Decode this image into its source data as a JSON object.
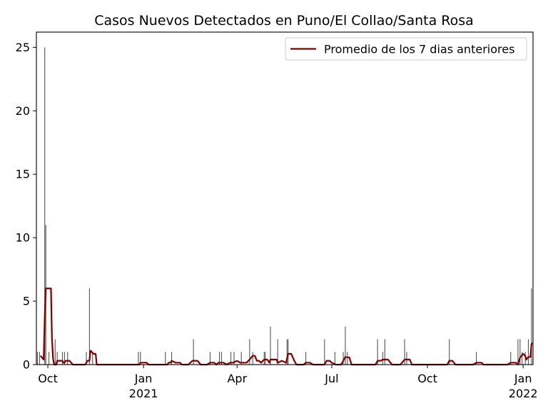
{
  "chart_data": {
    "type": "bar",
    "title": "Casos Nuevos Detectados en Puno/El Collao/Santa Rosa",
    "xlabel": "",
    "ylabel": "",
    "ylim": [
      0,
      26.2
    ],
    "xlim": [
      "2020-09-20",
      "2022-01-09"
    ],
    "grid": false,
    "legend_position": "top-right",
    "colors": {
      "bars": "#555555",
      "line": "#800000"
    },
    "x_ticks": [
      {
        "date": "2020-10-01",
        "lines": [
          "Oct"
        ]
      },
      {
        "date": "2021-01-01",
        "lines": [
          "Jan",
          "2021"
        ]
      },
      {
        "date": "2021-04-01",
        "lines": [
          "Apr"
        ]
      },
      {
        "date": "2021-07-01",
        "lines": [
          "Jul"
        ]
      },
      {
        "date": "2021-10-01",
        "lines": [
          "Oct"
        ]
      },
      {
        "date": "2022-01-01",
        "lines": [
          "Jan",
          "2022"
        ]
      }
    ],
    "y_ticks": [
      0,
      5,
      10,
      15,
      20,
      25
    ],
    "series": [
      {
        "name": "",
        "kind": "bar",
        "points": [
          [
            "2020-09-21",
            1
          ],
          [
            "2020-09-23",
            1
          ],
          [
            "2020-09-28",
            25
          ],
          [
            "2020-09-29",
            11
          ],
          [
            "2020-10-02",
            1
          ],
          [
            "2020-10-08",
            2
          ],
          [
            "2020-10-10",
            1
          ],
          [
            "2020-10-15",
            1
          ],
          [
            "2020-10-17",
            1
          ],
          [
            "2020-10-20",
            1
          ],
          [
            "2020-11-07",
            1
          ],
          [
            "2020-11-10",
            6
          ],
          [
            "2020-11-13",
            1
          ],
          [
            "2020-12-27",
            1
          ],
          [
            "2020-12-29",
            1
          ],
          [
            "2021-01-22",
            1
          ],
          [
            "2021-01-28",
            1
          ],
          [
            "2021-02-18",
            2
          ],
          [
            "2021-03-06",
            1
          ],
          [
            "2021-03-15",
            1
          ],
          [
            "2021-03-17",
            1
          ],
          [
            "2021-03-26",
            1
          ],
          [
            "2021-03-29",
            1
          ],
          [
            "2021-04-05",
            1
          ],
          [
            "2021-04-13",
            2
          ],
          [
            "2021-04-16",
            1
          ],
          [
            "2021-04-27",
            1
          ],
          [
            "2021-04-28",
            1
          ],
          [
            "2021-05-03",
            3
          ],
          [
            "2021-05-10",
            2
          ],
          [
            "2021-05-19",
            2
          ],
          [
            "2021-05-20",
            2
          ],
          [
            "2021-06-06",
            1
          ],
          [
            "2021-06-24",
            2
          ],
          [
            "2021-07-04",
            1
          ],
          [
            "2021-07-12",
            1
          ],
          [
            "2021-07-14",
            3
          ],
          [
            "2021-07-16",
            1
          ],
          [
            "2021-08-14",
            2
          ],
          [
            "2021-08-19",
            1
          ],
          [
            "2021-08-21",
            2
          ],
          [
            "2021-09-09",
            2
          ],
          [
            "2021-09-11",
            1
          ],
          [
            "2021-10-22",
            2
          ],
          [
            "2021-11-17",
            1
          ],
          [
            "2021-12-20",
            1
          ],
          [
            "2021-12-27",
            2
          ],
          [
            "2021-12-29",
            2
          ],
          [
            "2021-12-31",
            1
          ],
          [
            "2022-01-03",
            1
          ],
          [
            "2022-01-06",
            2
          ],
          [
            "2022-01-09",
            6
          ]
        ]
      },
      {
        "name": "Promedio de los 7 dias anteriores",
        "kind": "line",
        "points": [
          [
            "2020-09-24",
            0.7
          ],
          [
            "2020-09-27",
            0.4
          ],
          [
            "2020-09-28",
            3.7
          ],
          [
            "2020-09-29",
            6.0
          ],
          [
            "2020-10-04",
            6.0
          ],
          [
            "2020-10-05",
            2.0
          ],
          [
            "2020-10-06",
            0.5
          ],
          [
            "2020-10-07",
            0.0
          ],
          [
            "2020-10-09",
            0.0
          ],
          [
            "2020-10-10",
            0.3
          ],
          [
            "2020-10-15",
            0.3
          ],
          [
            "2020-10-16",
            0.15
          ],
          [
            "2020-10-17",
            0.15
          ],
          [
            "2020-10-18",
            0.3
          ],
          [
            "2020-10-22",
            0.3
          ],
          [
            "2020-10-25",
            0.0
          ],
          [
            "2020-11-06",
            0.0
          ],
          [
            "2020-11-08",
            0.3
          ],
          [
            "2020-11-10",
            0.3
          ],
          [
            "2020-11-11",
            1.1
          ],
          [
            "2020-11-14",
            0.85
          ],
          [
            "2020-11-16",
            0.85
          ],
          [
            "2020-11-17",
            0.0
          ],
          [
            "2020-12-28",
            0.0
          ],
          [
            "2020-12-29",
            0.15
          ],
          [
            "2021-01-04",
            0.15
          ],
          [
            "2021-01-06",
            0.0
          ],
          [
            "2021-01-24",
            0.0
          ],
          [
            "2021-01-25",
            0.15
          ],
          [
            "2021-01-27",
            0.15
          ],
          [
            "2021-01-28",
            0.3
          ],
          [
            "2021-02-01",
            0.15
          ],
          [
            "2021-02-05",
            0.15
          ],
          [
            "2021-02-07",
            0.0
          ],
          [
            "2021-02-13",
            0.0
          ],
          [
            "2021-02-17",
            0.3
          ],
          [
            "2021-02-22",
            0.3
          ],
          [
            "2021-02-25",
            0.0
          ],
          [
            "2021-03-03",
            0.0
          ],
          [
            "2021-03-06",
            0.15
          ],
          [
            "2021-03-10",
            0.15
          ],
          [
            "2021-03-12",
            0.0
          ],
          [
            "2021-03-14",
            0.15
          ],
          [
            "2021-03-19",
            0.15
          ],
          [
            "2021-03-22",
            0.0
          ],
          [
            "2021-03-25",
            0.15
          ],
          [
            "2021-03-28",
            0.15
          ],
          [
            "2021-04-01",
            0.3
          ],
          [
            "2021-04-04",
            0.15
          ],
          [
            "2021-04-06",
            0.15
          ],
          [
            "2021-04-10",
            0.15
          ],
          [
            "2021-04-13",
            0.4
          ],
          [
            "2021-04-16",
            0.7
          ],
          [
            "2021-04-18",
            0.7
          ],
          [
            "2021-04-20",
            0.3
          ],
          [
            "2021-04-22",
            0.3
          ],
          [
            "2021-04-24",
            0.15
          ],
          [
            "2021-04-27",
            0.4
          ],
          [
            "2021-04-30",
            0.4
          ],
          [
            "2021-05-02",
            0.15
          ],
          [
            "2021-05-03",
            0.4
          ],
          [
            "2021-05-07",
            0.4
          ],
          [
            "2021-05-09",
            0.4
          ],
          [
            "2021-05-10",
            0.15
          ],
          [
            "2021-05-14",
            0.3
          ],
          [
            "2021-05-18",
            0.15
          ],
          [
            "2021-05-20",
            0.85
          ],
          [
            "2021-05-23",
            0.85
          ],
          [
            "2021-05-26",
            0.3
          ],
          [
            "2021-05-28",
            0.0
          ],
          [
            "2021-06-04",
            0.0
          ],
          [
            "2021-06-06",
            0.15
          ],
          [
            "2021-06-10",
            0.15
          ],
          [
            "2021-06-13",
            0.0
          ],
          [
            "2021-06-24",
            0.0
          ],
          [
            "2021-06-26",
            0.3
          ],
          [
            "2021-06-29",
            0.3
          ],
          [
            "2021-07-01",
            0.15
          ],
          [
            "2021-07-05",
            0.0
          ],
          [
            "2021-07-10",
            0.0
          ],
          [
            "2021-07-14",
            0.6
          ],
          [
            "2021-07-18",
            0.55
          ],
          [
            "2021-07-20",
            0.0
          ],
          [
            "2021-08-12",
            0.0
          ],
          [
            "2021-08-14",
            0.3
          ],
          [
            "2021-08-17",
            0.3
          ],
          [
            "2021-08-19",
            0.4
          ],
          [
            "2021-08-24",
            0.4
          ],
          [
            "2021-08-28",
            0.0
          ],
          [
            "2021-09-05",
            0.0
          ],
          [
            "2021-09-09",
            0.4
          ],
          [
            "2021-09-14",
            0.4
          ],
          [
            "2021-09-16",
            0.0
          ],
          [
            "2021-10-20",
            0.0
          ],
          [
            "2021-10-22",
            0.3
          ],
          [
            "2021-10-25",
            0.3
          ],
          [
            "2021-10-28",
            0.0
          ],
          [
            "2021-11-14",
            0.0
          ],
          [
            "2021-11-17",
            0.15
          ],
          [
            "2021-11-22",
            0.15
          ],
          [
            "2021-11-24",
            0.0
          ],
          [
            "2021-12-17",
            0.0
          ],
          [
            "2021-12-20",
            0.15
          ],
          [
            "2021-12-25",
            0.15
          ],
          [
            "2021-12-27",
            0.0
          ],
          [
            "2021-12-29",
            0.55
          ],
          [
            "2022-01-01",
            0.85
          ],
          [
            "2022-01-03",
            0.7
          ],
          [
            "2022-01-04",
            0.4
          ],
          [
            "2022-01-06",
            0.6
          ],
          [
            "2022-01-08",
            0.6
          ],
          [
            "2022-01-09",
            1.6
          ],
          [
            "2022-01-10",
            1.7
          ]
        ]
      }
    ]
  }
}
